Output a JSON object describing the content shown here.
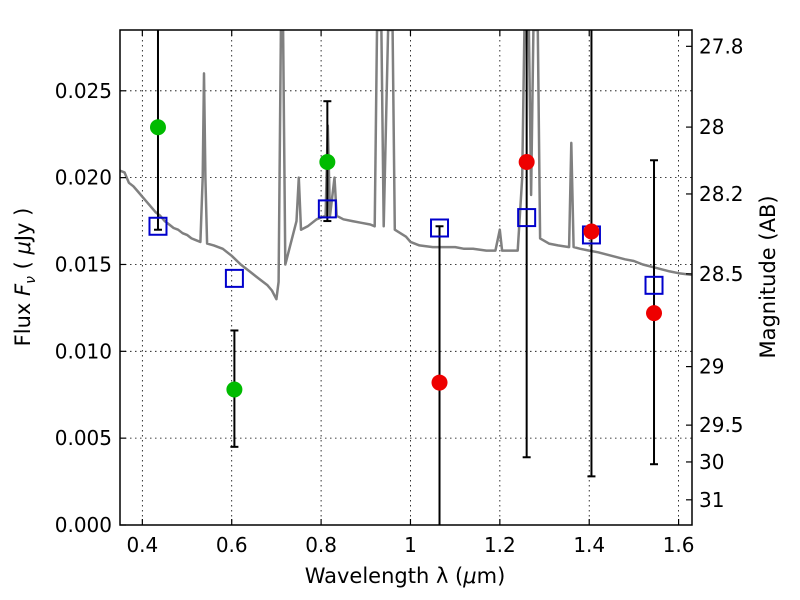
{
  "chart_data": {
    "type": "scatter",
    "title": "",
    "xlabel": "Wavelength  λ (μm)",
    "ylabel": "Flux  F_ν  ( μJy )",
    "ylabel_right": "Magnitude (AB)",
    "xlim": [
      0.35,
      1.63
    ],
    "ylim": [
      0.0,
      0.0285
    ],
    "x_ticks": [
      0.4,
      0.6,
      0.8,
      1.0,
      1.2,
      1.4,
      1.6
    ],
    "x_tick_labels": [
      "0.4",
      "0.6",
      "0.8",
      "1",
      "1.2",
      "1.4",
      "1.6"
    ],
    "y_ticks": [
      0.0,
      0.005,
      0.01,
      0.015,
      0.02,
      0.025
    ],
    "y_tick_labels": [
      "0.000",
      "0.005",
      "0.010",
      "0.015",
      "0.020",
      "0.025"
    ],
    "right_ticks": [
      {
        "label": "27.8",
        "flux": 0.02756
      },
      {
        "label": "28",
        "flux": 0.02291
      },
      {
        "label": "28.2",
        "flux": 0.01906
      },
      {
        "label": "28.5",
        "flux": 0.01446
      },
      {
        "label": "29",
        "flux": 0.00912
      },
      {
        "label": "29.5",
        "flux": 0.00575
      },
      {
        "label": "30",
        "flux": 0.00363
      },
      {
        "label": "31",
        "flux": 0.00145
      }
    ],
    "grid": true,
    "colors": {
      "spectrum": "#808080",
      "green_points": "#00bb00",
      "red_points": "#ee0000",
      "model_boxes": "#0000cc",
      "error_bars": "#000000"
    },
    "series": [
      {
        "type": "line",
        "points": [
          [
            0.35,
            0.0204
          ],
          [
            0.36,
            0.0203
          ],
          [
            0.37,
            0.0197
          ],
          [
            0.38,
            0.0195
          ],
          [
            0.39,
            0.0192
          ],
          [
            0.4,
            0.0189
          ],
          [
            0.41,
            0.0186
          ],
          [
            0.42,
            0.0183
          ],
          [
            0.43,
            0.018
          ],
          [
            0.44,
            0.0178
          ],
          [
            0.45,
            0.0175
          ],
          [
            0.46,
            0.0173
          ],
          [
            0.47,
            0.0171
          ],
          [
            0.48,
            0.017
          ],
          [
            0.49,
            0.0168
          ],
          [
            0.5,
            0.0167
          ],
          [
            0.51,
            0.0165
          ],
          [
            0.52,
            0.0164
          ],
          [
            0.53,
            0.0163
          ],
          [
            0.535,
            0.02
          ],
          [
            0.538,
            0.026
          ],
          [
            0.541,
            0.02
          ],
          [
            0.545,
            0.0162
          ],
          [
            0.56,
            0.0161
          ],
          [
            0.58,
            0.0159
          ],
          [
            0.6,
            0.0155
          ],
          [
            0.62,
            0.015
          ],
          [
            0.64,
            0.0146
          ],
          [
            0.66,
            0.0142
          ],
          [
            0.68,
            0.0138
          ],
          [
            0.69,
            0.0135
          ],
          [
            0.7,
            0.013
          ],
          [
            0.705,
            0.014
          ],
          [
            0.71,
            0.0285
          ],
          [
            0.715,
            0.0285
          ],
          [
            0.72,
            0.015
          ],
          [
            0.73,
            0.016
          ],
          [
            0.745,
            0.0175
          ],
          [
            0.75,
            0.02
          ],
          [
            0.755,
            0.017
          ],
          [
            0.77,
            0.0172
          ],
          [
            0.79,
            0.0176
          ],
          [
            0.81,
            0.0178
          ],
          [
            0.815,
            0.023
          ],
          [
            0.82,
            0.0178
          ],
          [
            0.83,
            0.02
          ],
          [
            0.835,
            0.0178
          ],
          [
            0.85,
            0.0176
          ],
          [
            0.87,
            0.0175
          ],
          [
            0.89,
            0.0174
          ],
          [
            0.91,
            0.0173
          ],
          [
            0.92,
            0.0172
          ],
          [
            0.925,
            0.0285
          ],
          [
            0.935,
            0.0285
          ],
          [
            0.94,
            0.0172
          ],
          [
            0.95,
            0.0285
          ],
          [
            0.96,
            0.0285
          ],
          [
            0.965,
            0.017
          ],
          [
            0.99,
            0.0166
          ],
          [
            1.0,
            0.0163
          ],
          [
            1.02,
            0.0161
          ],
          [
            1.05,
            0.016
          ],
          [
            1.08,
            0.016
          ],
          [
            1.1,
            0.016
          ],
          [
            1.12,
            0.0159
          ],
          [
            1.14,
            0.0159
          ],
          [
            1.17,
            0.0158
          ],
          [
            1.19,
            0.0158
          ],
          [
            1.2,
            0.017
          ],
          [
            1.205,
            0.0158
          ],
          [
            1.22,
            0.0158
          ],
          [
            1.24,
            0.0158
          ],
          [
            1.25,
            0.02
          ],
          [
            1.255,
            0.0285
          ],
          [
            1.265,
            0.0285
          ],
          [
            1.27,
            0.019
          ],
          [
            1.275,
            0.0285
          ],
          [
            1.285,
            0.0285
          ],
          [
            1.29,
            0.0165
          ],
          [
            1.31,
            0.0162
          ],
          [
            1.33,
            0.0161
          ],
          [
            1.355,
            0.016
          ],
          [
            1.36,
            0.022
          ],
          [
            1.365,
            0.016
          ],
          [
            1.38,
            0.0159
          ],
          [
            1.4,
            0.0158
          ],
          [
            1.42,
            0.0157
          ],
          [
            1.45,
            0.0155
          ],
          [
            1.48,
            0.0153
          ],
          [
            1.5,
            0.0152
          ],
          [
            1.52,
            0.015
          ],
          [
            1.55,
            0.0148
          ],
          [
            1.58,
            0.0146
          ],
          [
            1.6,
            0.0145
          ],
          [
            1.63,
            0.0144
          ]
        ]
      },
      {
        "type": "scatter",
        "points": [
          {
            "x": 0.435,
            "y": 0.0229,
            "color": "green",
            "err_low": 0.017,
            "err_high": 0.0285
          },
          {
            "x": 0.606,
            "y": 0.0078,
            "color": "green",
            "err_low": 0.0045,
            "err_high": 0.0112
          },
          {
            "x": 0.814,
            "y": 0.0209,
            "color": "green",
            "err_low": 0.0175,
            "err_high": 0.0244
          },
          {
            "x": 1.065,
            "y": 0.0082,
            "color": "red",
            "err_low": 0.0,
            "err_high": 0.0172
          },
          {
            "x": 1.26,
            "y": 0.0209,
            "color": "red",
            "err_low": 0.0039,
            "err_high": 0.0285
          },
          {
            "x": 1.405,
            "y": 0.0169,
            "color": "red",
            "err_low": 0.0028,
            "err_high": 0.0285
          },
          {
            "x": 1.545,
            "y": 0.0122,
            "color": "red",
            "err_low": 0.0035,
            "err_high": 0.021
          }
        ]
      },
      {
        "type": "scatter",
        "marker": "square",
        "points": [
          {
            "x": 0.435,
            "y": 0.0172
          },
          {
            "x": 0.606,
            "y": 0.0142
          },
          {
            "x": 0.814,
            "y": 0.0182
          },
          {
            "x": 1.065,
            "y": 0.0171
          },
          {
            "x": 1.26,
            "y": 0.0177
          },
          {
            "x": 1.405,
            "y": 0.0167
          },
          {
            "x": 1.545,
            "y": 0.0138
          }
        ]
      }
    ]
  }
}
